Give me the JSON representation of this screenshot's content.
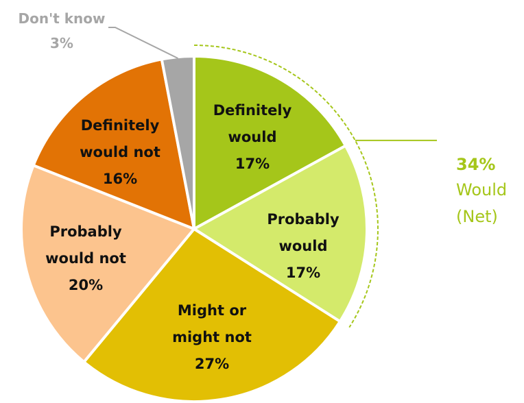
{
  "chart_data": {
    "type": "pie",
    "slices": [
      {
        "label_lines": [
          "Definitely",
          "would"
        ],
        "value": 17,
        "value_label": "17%",
        "color": "#a5c61a"
      },
      {
        "label_lines": [
          "Probably",
          "would"
        ],
        "value": 17,
        "value_label": "17%",
        "color": "#d4ea6b"
      },
      {
        "label_lines": [
          "Might or",
          "might not"
        ],
        "value": 27,
        "value_label": "27%",
        "color": "#e2bf04"
      },
      {
        "label_lines": [
          "Probably",
          "would not"
        ],
        "value": 20,
        "value_label": "20%",
        "color": "#fcc48e"
      },
      {
        "label_lines": [
          "Definitely",
          "would not"
        ],
        "value": 16,
        "value_label": "16%",
        "color": "#e27305"
      },
      {
        "label_lines": [
          "Don't know"
        ],
        "value": 3,
        "value_label": "3%",
        "color": "#a6a6a6"
      }
    ],
    "net_annotation": {
      "value_label": "34%",
      "text_lines": [
        "Would",
        "(Net)"
      ],
      "color": "#a5c61a",
      "covers": [
        "Definitely would",
        "Probably would"
      ]
    }
  }
}
